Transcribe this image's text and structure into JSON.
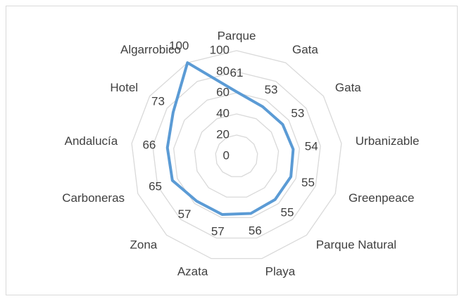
{
  "chart_data": {
    "type": "radar",
    "categories": [
      "Parque",
      "Gata",
      "Gata",
      "Urbanizable",
      "Greenpeace",
      "Parque Natural",
      "Playa",
      "Azata",
      "Zona",
      "Carboneras",
      "Andalucía",
      "Hotel",
      "Algarrobico"
    ],
    "series": [
      {
        "color": "#5b9bd5",
        "values": [
          61,
          53,
          53,
          54,
          55,
          55,
          56,
          57,
          57,
          65,
          66,
          73,
          100
        ]
      }
    ],
    "ylim": [
      0,
      100
    ],
    "yticks": [
      0,
      20,
      40,
      60,
      80,
      100
    ],
    "grid": true
  }
}
